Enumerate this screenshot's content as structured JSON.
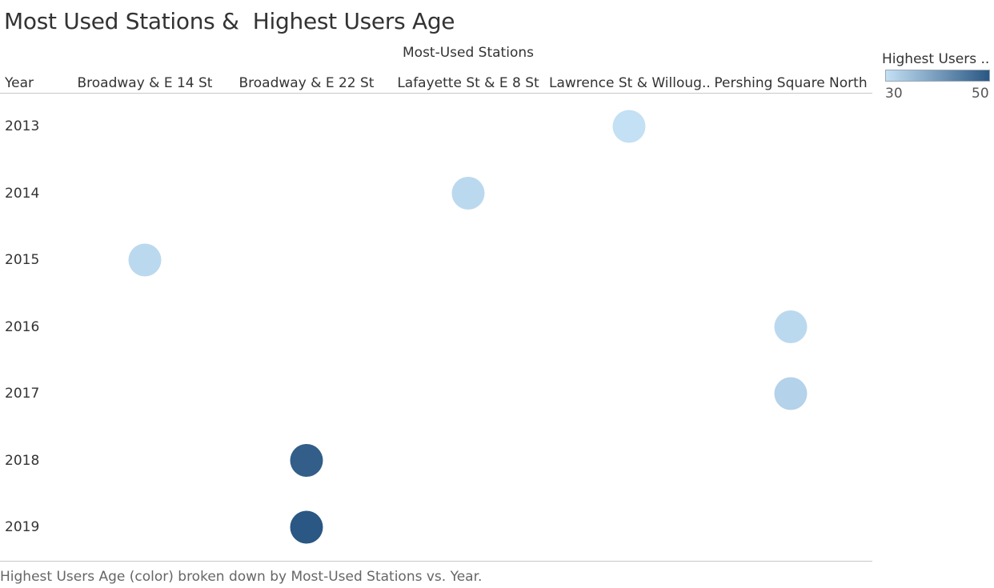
{
  "title": "Most Used Stations &  Highest Users Age",
  "caption": "Highest Users Age (color) broken down by Most-Used Stations vs. Year.",
  "legend": {
    "title": "Highest Users ..",
    "min_label": "30",
    "max_label": "50",
    "color_low": "#c3e0f4",
    "color_high": "#2a5783"
  },
  "chart_data": {
    "type": "scatter",
    "title": "Most Used Stations &  Highest Users Age",
    "column_group_label": "Most-Used Stations",
    "row_header": "Year",
    "columns": [
      "Broadway & E 14 St",
      "Broadway & E 22 St",
      "Lafayette St & E 8 St",
      "Lawrence St & Willoug..",
      "Pershing Square North"
    ],
    "rows": [
      "2013",
      "2014",
      "2015",
      "2016",
      "2017",
      "2018",
      "2019"
    ],
    "color_measure": "Highest Users Age",
    "color_range": [
      30,
      50
    ],
    "points": [
      {
        "year": "2013",
        "station": "Lawrence St & Willoug..",
        "age": 30
      },
      {
        "year": "2014",
        "station": "Lafayette St & E 8 St",
        "age": 31
      },
      {
        "year": "2015",
        "station": "Broadway & E 14 St",
        "age": 31
      },
      {
        "year": "2016",
        "station": "Pershing Square North",
        "age": 31
      },
      {
        "year": "2017",
        "station": "Pershing Square North",
        "age": 32
      },
      {
        "year": "2018",
        "station": "Broadway & E 22 St",
        "age": 49
      },
      {
        "year": "2019",
        "station": "Broadway & E 22 St",
        "age": 50
      }
    ]
  }
}
